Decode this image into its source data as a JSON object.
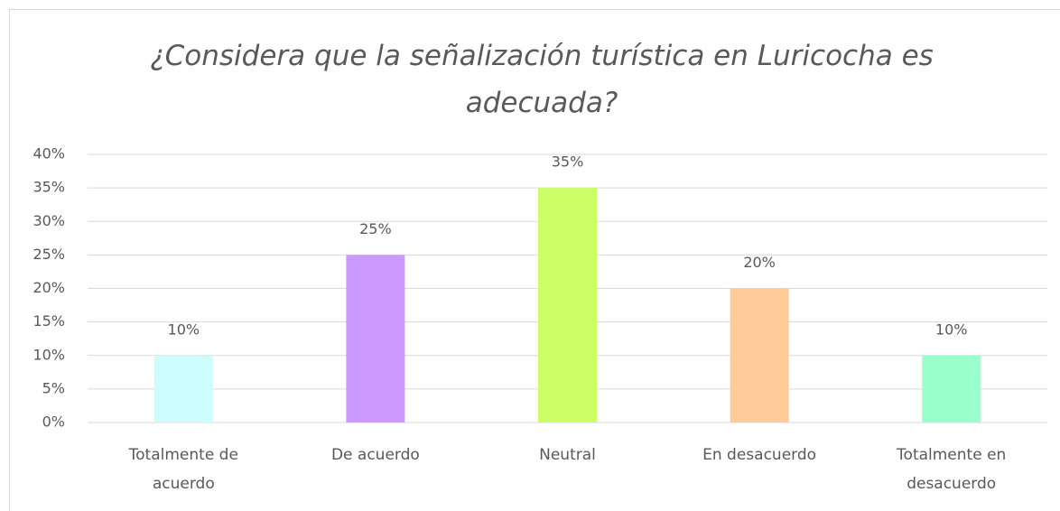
{
  "chart_data": {
    "type": "bar",
    "title": "¿Considera que la señalización turística en Luricocha es adecuada?",
    "categories": [
      "Totalmente de acuerdo",
      "De acuerdo",
      "Neutral",
      "En desacuerdo",
      "Totalmente en desacuerdo"
    ],
    "values": [
      10,
      25,
      35,
      20,
      10
    ],
    "value_labels": [
      "10%",
      "25%",
      "35%",
      "20%",
      "10%"
    ],
    "colors": [
      "#ccfcfc",
      "#cc99ff",
      "#ccff66",
      "#ffcc99",
      "#99ffcc"
    ],
    "ylim": [
      0,
      40
    ],
    "yticks": [
      {
        "value": 0,
        "label": "0%"
      },
      {
        "value": 5,
        "label": "5%"
      },
      {
        "value": 10,
        "label": "10%"
      },
      {
        "value": 15,
        "label": "15%"
      },
      {
        "value": 20,
        "label": "20%"
      },
      {
        "value": 25,
        "label": "25%"
      },
      {
        "value": 30,
        "label": "30%"
      },
      {
        "value": 35,
        "label": "35%"
      },
      {
        "value": 40,
        "label": "40%"
      }
    ],
    "grid": true
  }
}
